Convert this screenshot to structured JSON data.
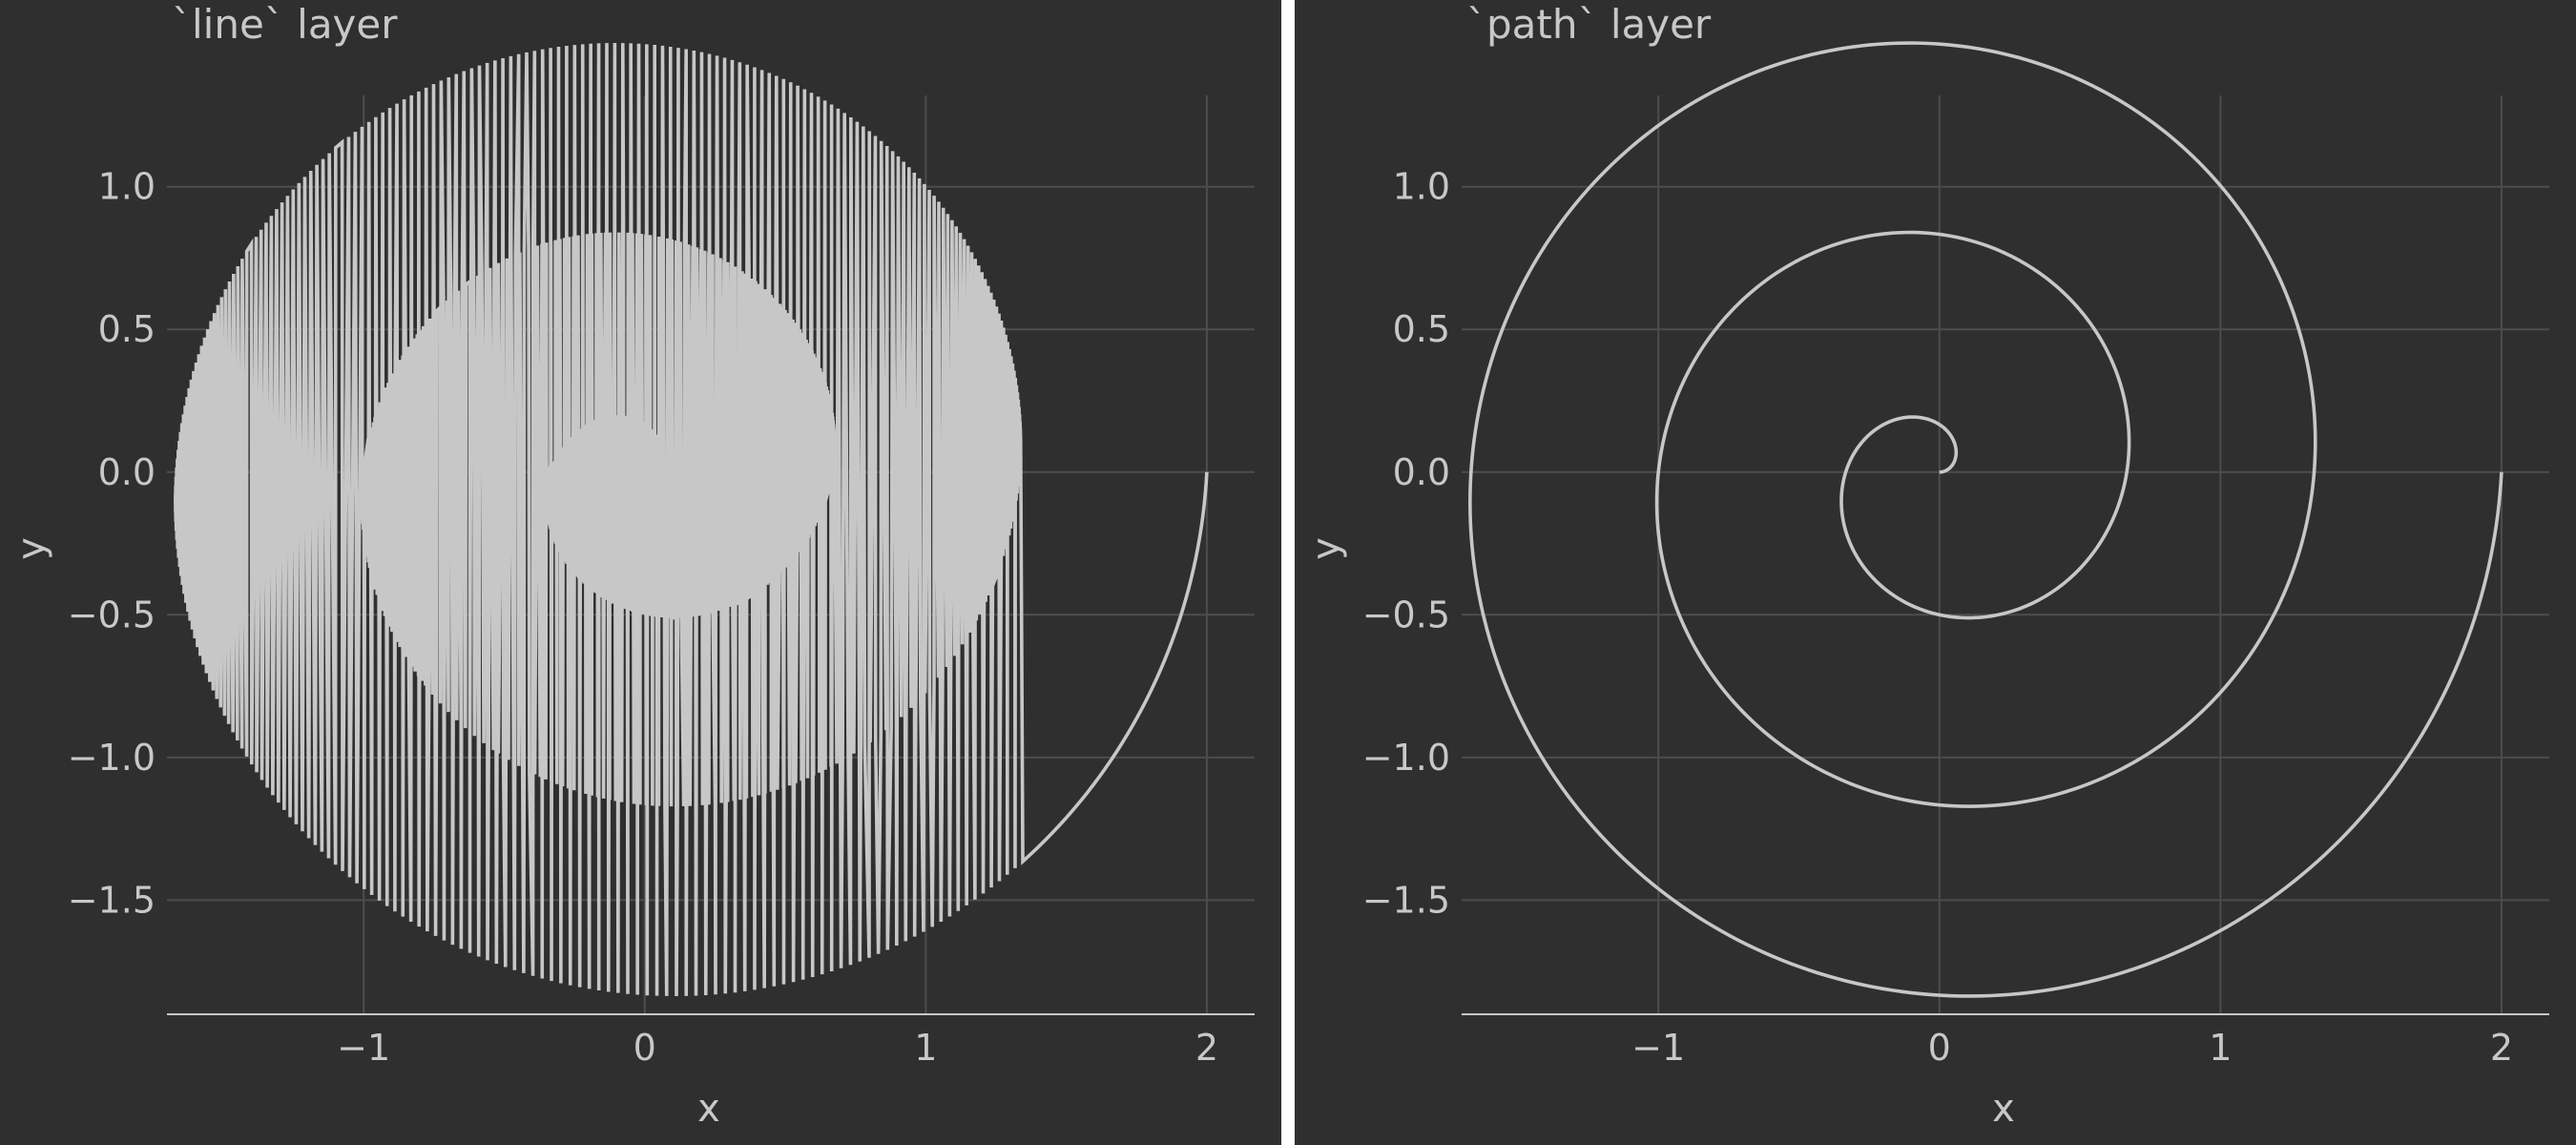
{
  "chart_data": [
    {
      "type": "line",
      "title": "`line` layer",
      "xlabel": "x",
      "ylabel": "y",
      "xlim": [
        -1.7,
        2.17
      ],
      "ylim": [
        -1.9,
        1.32
      ],
      "x_ticks": [
        -1,
        0,
        1,
        2
      ],
      "x_tick_labels": [
        "−1",
        "0",
        "1",
        "2"
      ],
      "y_ticks": [
        1.0,
        0.5,
        0.0,
        -0.5,
        -1.0,
        -1.5
      ],
      "y_tick_labels": [
        "1.0",
        "0.5",
        "0.0",
        "−0.5",
        "−1.0",
        "−1.5"
      ],
      "grid": true,
      "series": [
        {
          "color": "#c7c7c7",
          "curve": "spiral: x = (2 − 2t/3)·cos(2π·t), y = (2 − 2t/3)·sin(2π·t)·(−1), t = 0..3",
          "points": 1000,
          "connect_order": "sorted by x"
        }
      ]
    },
    {
      "type": "line",
      "title": "`path` layer",
      "xlabel": "x",
      "ylabel": "y",
      "xlim": [
        -1.7,
        2.17
      ],
      "ylim": [
        -1.9,
        1.32
      ],
      "x_ticks": [
        -1,
        0,
        1,
        2
      ],
      "x_tick_labels": [
        "−1",
        "0",
        "1",
        "2"
      ],
      "y_ticks": [
        1.0,
        0.5,
        0.0,
        -0.5,
        -1.0,
        -1.5
      ],
      "y_tick_labels": [
        "1.0",
        "0.5",
        "0.0",
        "−0.5",
        "−1.0",
        "−1.5"
      ],
      "grid": true,
      "series": [
        {
          "color": "#c7c7c7",
          "curve": "spiral: x = (2 − 2t/3)·cos(2π·t), y = (2 − 2t/3)·sin(2π·t)·(−1), t = 0..3",
          "points": 1000,
          "connect_order": "data order"
        }
      ]
    }
  ]
}
